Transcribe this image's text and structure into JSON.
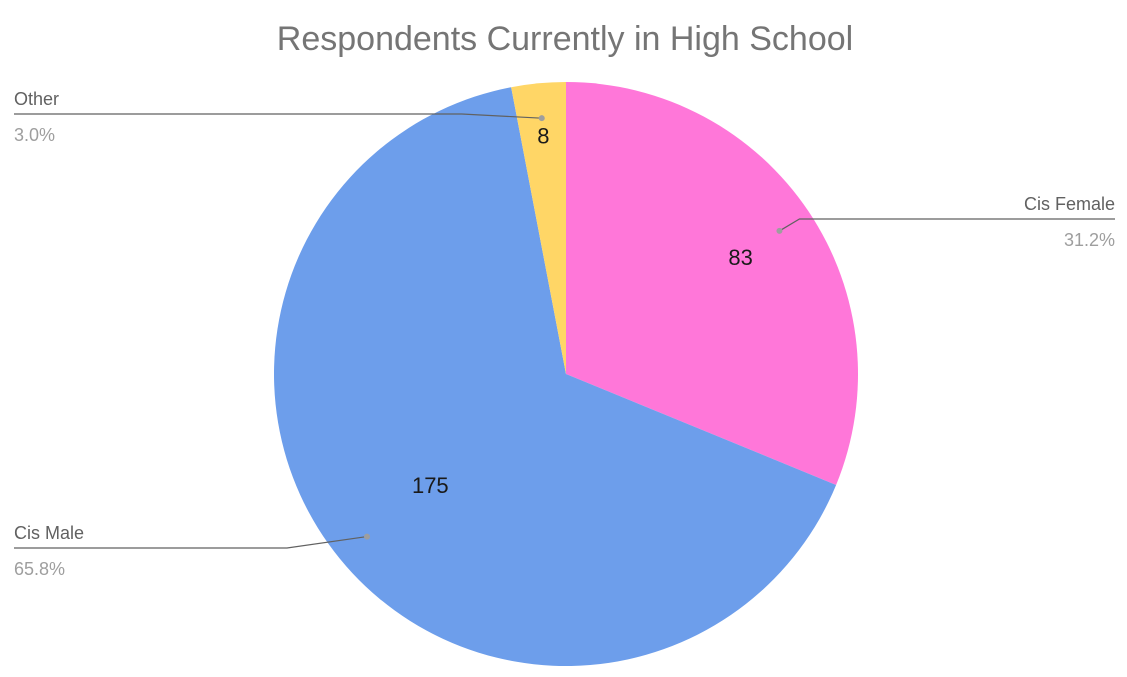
{
  "chart_data": {
    "type": "pie",
    "title": "Respondents Currently in High School",
    "slices": [
      {
        "name": "Cis Female",
        "value": 83,
        "percent": "31.2%",
        "color": "#ff77d9"
      },
      {
        "name": "Cis Male",
        "value": 175,
        "percent": "65.8%",
        "color": "#6d9eeb"
      },
      {
        "name": "Other",
        "value": 8,
        "percent": "3.0%",
        "color": "#ffd666"
      }
    ],
    "label_position": "outside-with-leader-lines",
    "value_labels": "inside"
  }
}
